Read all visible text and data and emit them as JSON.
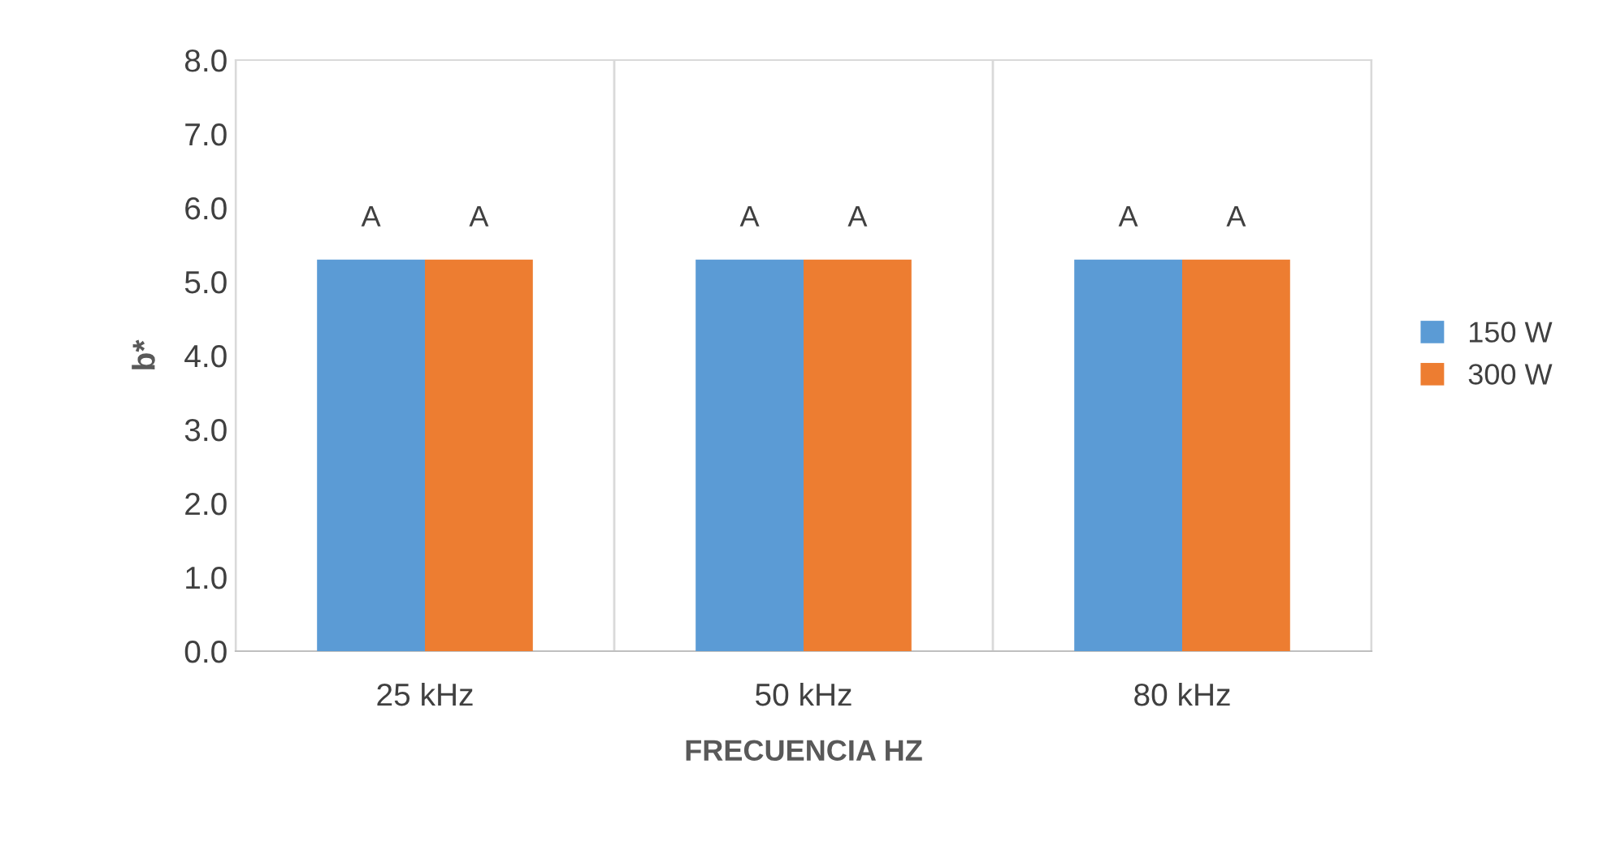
{
  "chart_data": {
    "type": "bar",
    "xlabel": "FRECUENCIA HZ",
    "ylabel": "b*",
    "categories": [
      "25 kHz",
      "50 kHz",
      "80 kHz"
    ],
    "series": [
      {
        "name": "150 W",
        "color": "#5b9bd5",
        "values": [
          5.3,
          5.3,
          5.3
        ],
        "value_labels": [
          "A",
          "A",
          "A"
        ]
      },
      {
        "name": "300 W",
        "color": "#ed7d31",
        "values": [
          5.3,
          5.3,
          5.3
        ],
        "value_labels": [
          "A",
          "A",
          "A"
        ]
      }
    ],
    "ylim": [
      0,
      8
    ],
    "yticks": [
      {
        "value": 0,
        "label": "0.0"
      },
      {
        "value": 1,
        "label": "1.0"
      },
      {
        "value": 2,
        "label": "2.0"
      },
      {
        "value": 3,
        "label": "3.0"
      },
      {
        "value": 4,
        "label": "4.0"
      },
      {
        "value": 5,
        "label": "5.0"
      },
      {
        "value": 6,
        "label": "6.0"
      },
      {
        "value": 7,
        "label": "7.0"
      },
      {
        "value": 8,
        "label": "8.0"
      }
    ],
    "grid": "x",
    "legend": "right"
  }
}
